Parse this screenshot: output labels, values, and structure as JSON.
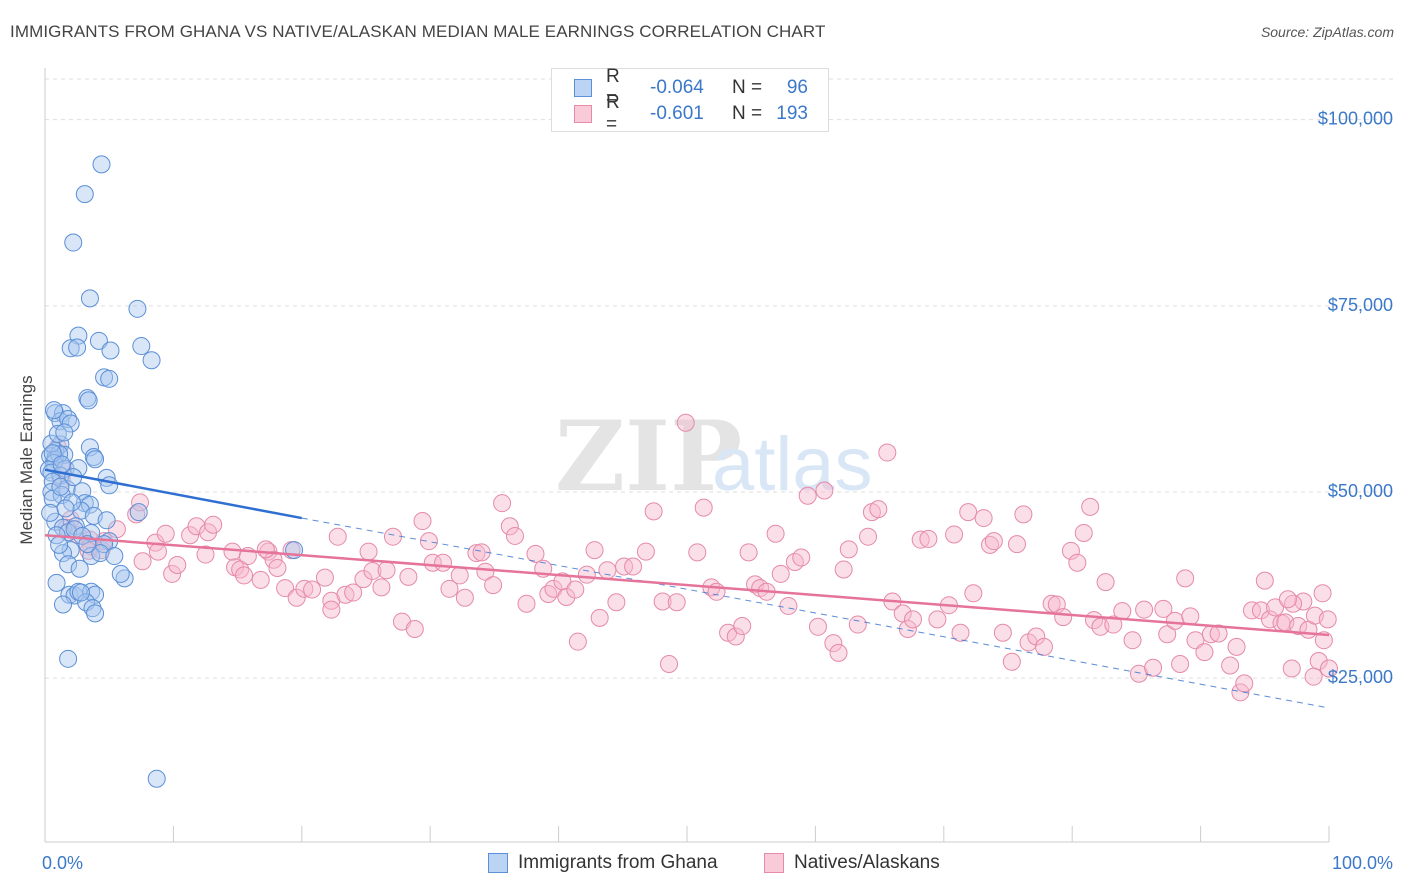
{
  "header": {
    "title": "IMMIGRANTS FROM GHANA VS NATIVE/ALASKAN MEDIAN MALE EARNINGS CORRELATION CHART",
    "source": "Source: ZipAtlas.com"
  },
  "legend": {
    "rows": [
      {
        "r_label": "R =",
        "r_value": "-0.064",
        "n_label": "N =",
        "n_value": "96"
      },
      {
        "r_label": "R =",
        "r_value": "-0.601",
        "n_label": "N =",
        "n_value": "193"
      }
    ]
  },
  "bottom_legend": {
    "series1": "Immigrants from Ghana",
    "series2": "Natives/Alaskans"
  },
  "colors": {
    "blue_fill": "#a9c8f0",
    "blue_stroke": "#5b8fd6",
    "blue_line": "#2f6fd1",
    "pink_fill": "#f6b9cc",
    "pink_stroke": "#e58aa8",
    "pink_line": "#e5739a",
    "accent_text": "#3b78c9"
  },
  "chart_data": {
    "type": "scatter",
    "title": "IMMIGRANTS FROM GHANA VS NATIVE/ALASKAN MEDIAN MALE EARNINGS CORRELATION CHART",
    "xlabel": "",
    "ylabel": "Median Male Earnings",
    "xlim": [
      0,
      100
    ],
    "ylim": [
      3000,
      106000
    ],
    "x_tick_labels": [
      "0.0%",
      "100.0%"
    ],
    "y_ticks": [
      25000,
      50000,
      75000,
      100000
    ],
    "y_tick_labels": [
      "$25,000",
      "$50,000",
      "$75,000",
      "$100,000"
    ],
    "grid": true,
    "legend_position": "top-center",
    "watermark": "ZIPatlas",
    "series": [
      {
        "name": "Immigrants from Ghana",
        "color": "#a9c8f0",
        "points": [
          [
            4.4,
            94
          ],
          [
            3.1,
            90
          ],
          [
            2.2,
            83.5
          ],
          [
            3.5,
            76
          ],
          [
            7.2,
            74.6
          ],
          [
            2.6,
            71
          ],
          [
            4.2,
            70.3
          ],
          [
            2.0,
            69.3
          ],
          [
            2.5,
            69.4
          ],
          [
            5.1,
            69.0
          ],
          [
            7.5,
            69.6
          ],
          [
            8.3,
            67.7
          ],
          [
            4.6,
            65.4
          ],
          [
            5.0,
            65.2
          ],
          [
            3.3,
            62.6
          ],
          [
            3.4,
            62.3
          ],
          [
            0.8,
            60.6
          ],
          [
            1.4,
            60.6
          ],
          [
            1.2,
            59.5
          ],
          [
            1.8,
            59.8
          ],
          [
            2.0,
            59.2
          ],
          [
            1.2,
            56.4
          ],
          [
            3.5,
            56.0
          ],
          [
            0.8,
            55.5
          ],
          [
            1.5,
            55.0
          ],
          [
            0.4,
            54.8
          ],
          [
            0.8,
            54.4
          ],
          [
            1.1,
            55.1
          ],
          [
            3.8,
            54.7
          ],
          [
            3.9,
            54.4
          ],
          [
            0.7,
            53.9
          ],
          [
            0.3,
            53.0
          ],
          [
            0.5,
            52.6
          ],
          [
            1.6,
            53.1
          ],
          [
            2.6,
            53.2
          ],
          [
            1.2,
            52.2
          ],
          [
            0.6,
            51.4
          ],
          [
            4.8,
            51.9
          ],
          [
            5.0,
            50.9
          ],
          [
            1.7,
            50.4
          ],
          [
            0.5,
            50.0
          ],
          [
            1.3,
            49.6
          ],
          [
            2.9,
            50.1
          ],
          [
            0.6,
            49.1
          ],
          [
            3.1,
            48.5
          ],
          [
            3.5,
            48.3
          ],
          [
            2.8,
            47.5
          ],
          [
            7.3,
            47.3
          ],
          [
            3.8,
            46.8
          ],
          [
            0.8,
            46.0
          ],
          [
            1.4,
            45.2
          ],
          [
            2.4,
            45.4
          ],
          [
            1.8,
            44.6
          ],
          [
            3.6,
            44.5
          ],
          [
            0.9,
            44.2
          ],
          [
            5.0,
            43.4
          ],
          [
            4.6,
            43.0
          ],
          [
            2.0,
            42.2
          ],
          [
            1.4,
            41.8
          ],
          [
            3.6,
            41.4
          ],
          [
            4.3,
            41.8
          ],
          [
            5.4,
            41.4
          ],
          [
            1.8,
            40.3
          ],
          [
            2.7,
            39.7
          ],
          [
            1.9,
            36.2
          ],
          [
            2.3,
            36.1
          ],
          [
            2.6,
            36.6
          ],
          [
            3.6,
            36.6
          ],
          [
            3.9,
            36.2
          ],
          [
            3.2,
            35.2
          ],
          [
            1.4,
            34.9
          ],
          [
            3.7,
            34.4
          ],
          [
            3.9,
            33.7
          ],
          [
            6.2,
            38.4
          ],
          [
            19.4,
            42.2
          ],
          [
            1.8,
            27.6
          ],
          [
            8.7,
            11.5
          ],
          [
            0.5,
            56.5
          ],
          [
            1.0,
            57.8
          ],
          [
            0.6,
            55.2
          ],
          [
            1.2,
            50.7
          ],
          [
            2.1,
            48.6
          ],
          [
            2.3,
            45.0
          ],
          [
            0.4,
            47.2
          ],
          [
            1.6,
            47.8
          ],
          [
            2.9,
            44.1
          ],
          [
            3.3,
            43.0
          ],
          [
            4.8,
            46.2
          ],
          [
            1.1,
            42.9
          ],
          [
            0.9,
            37.8
          ],
          [
            2.8,
            36.5
          ],
          [
            5.9,
            39.0
          ],
          [
            0.7,
            61.0
          ],
          [
            1.5,
            58.0
          ],
          [
            2.2,
            52.0
          ],
          [
            1.3,
            53.7
          ]
        ]
      },
      {
        "name": "Natives/Alaskans",
        "color": "#f6b9cc",
        "points": [
          [
            1.0,
            56
          ],
          [
            1.4,
            53.0
          ],
          [
            1.3,
            51.6
          ],
          [
            2.0,
            46.3
          ],
          [
            1.7,
            45.2
          ],
          [
            2.6,
            44.2
          ],
          [
            3.5,
            43.6
          ],
          [
            4.6,
            43.4
          ],
          [
            3.6,
            42.7
          ],
          [
            3.4,
            42.1
          ],
          [
            4.4,
            42.2
          ],
          [
            5.6,
            45.0
          ],
          [
            7.1,
            47.0
          ],
          [
            7.4,
            48.6
          ],
          [
            8.6,
            43.2
          ],
          [
            8.8,
            42.0
          ],
          [
            7.6,
            40.7
          ],
          [
            9.4,
            44.4
          ],
          [
            9.9,
            39.0
          ],
          [
            10.3,
            40.2
          ],
          [
            11.3,
            44.2
          ],
          [
            11.8,
            45.4
          ],
          [
            12.7,
            44.6
          ],
          [
            13.1,
            45.6
          ],
          [
            12.5,
            41.6
          ],
          [
            14.8,
            39.9
          ],
          [
            14.6,
            42.0
          ],
          [
            15.2,
            39.6
          ],
          [
            15.8,
            41.4
          ],
          [
            15.5,
            38.8
          ],
          [
            16.8,
            38.2
          ],
          [
            17.4,
            42.0
          ],
          [
            17.8,
            40.9
          ],
          [
            17.2,
            42.3
          ],
          [
            18.1,
            39.8
          ],
          [
            19.2,
            42.2
          ],
          [
            18.7,
            37.1
          ],
          [
            19.6,
            35.8
          ],
          [
            20.2,
            37.0
          ],
          [
            20.8,
            36.9
          ],
          [
            21.8,
            38.5
          ],
          [
            22.3,
            35.4
          ],
          [
            22.3,
            34.2
          ],
          [
            22.8,
            44.0
          ],
          [
            23.4,
            36.2
          ],
          [
            24.0,
            36.5
          ],
          [
            24.8,
            38.3
          ],
          [
            25.2,
            42.0
          ],
          [
            25.5,
            39.4
          ],
          [
            26.2,
            37.2
          ],
          [
            26.6,
            39.5
          ],
          [
            27.1,
            44.0
          ],
          [
            27.8,
            32.6
          ],
          [
            28.3,
            38.6
          ],
          [
            28.8,
            31.6
          ],
          [
            29.4,
            46.1
          ],
          [
            29.9,
            43.4
          ],
          [
            30.2,
            40.5
          ],
          [
            31.0,
            40.5
          ],
          [
            31.5,
            37.0
          ],
          [
            32.3,
            38.8
          ],
          [
            32.7,
            35.8
          ],
          [
            33.6,
            41.8
          ],
          [
            34.0,
            41.9
          ],
          [
            34.3,
            39.3
          ],
          [
            34.9,
            37.5
          ],
          [
            35.6,
            48.5
          ],
          [
            36.2,
            45.4
          ],
          [
            36.6,
            44.1
          ],
          [
            37.5,
            35.0
          ],
          [
            38.2,
            41.7
          ],
          [
            38.8,
            39.7
          ],
          [
            39.2,
            36.3
          ],
          [
            39.6,
            37.0
          ],
          [
            40.3,
            38.0
          ],
          [
            40.6,
            35.9
          ],
          [
            41.3,
            36.9
          ],
          [
            41.5,
            29.9
          ],
          [
            42.2,
            38.9
          ],
          [
            42.8,
            42.2
          ],
          [
            43.2,
            33.1
          ],
          [
            43.8,
            39.5
          ],
          [
            44.5,
            35.2
          ],
          [
            45.1,
            40.0
          ],
          [
            45.8,
            40.0
          ],
          [
            46.8,
            42.0
          ],
          [
            47.4,
            47.4
          ],
          [
            48.1,
            35.3
          ],
          [
            48.6,
            26.9
          ],
          [
            49.2,
            35.2
          ],
          [
            49.9,
            59.3
          ],
          [
            50.8,
            41.9
          ],
          [
            51.3,
            47.9
          ],
          [
            51.9,
            37.2
          ],
          [
            52.3,
            36.6
          ],
          [
            53.2,
            31.1
          ],
          [
            53.8,
            30.6
          ],
          [
            54.3,
            32.0
          ],
          [
            54.8,
            41.9
          ],
          [
            55.3,
            37.6
          ],
          [
            55.7,
            37.1
          ],
          [
            56.2,
            36.6
          ],
          [
            56.9,
            44.4
          ],
          [
            57.3,
            39.0
          ],
          [
            57.9,
            34.7
          ],
          [
            58.4,
            40.6
          ],
          [
            58.9,
            41.2
          ],
          [
            59.4,
            49.5
          ],
          [
            60.2,
            31.9
          ],
          [
            60.7,
            50.2
          ],
          [
            61.4,
            29.7
          ],
          [
            61.8,
            28.4
          ],
          [
            62.2,
            39.6
          ],
          [
            62.6,
            42.3
          ],
          [
            63.3,
            32.2
          ],
          [
            64.1,
            44.0
          ],
          [
            64.4,
            47.3
          ],
          [
            64.9,
            47.7
          ],
          [
            65.6,
            55.3
          ],
          [
            66.0,
            35.3
          ],
          [
            66.8,
            33.7
          ],
          [
            67.2,
            31.6
          ],
          [
            67.6,
            32.9
          ],
          [
            68.2,
            43.6
          ],
          [
            68.8,
            43.7
          ],
          [
            69.5,
            32.9
          ],
          [
            70.4,
            34.8
          ],
          [
            70.8,
            44.3
          ],
          [
            71.3,
            31.1
          ],
          [
            71.9,
            47.3
          ],
          [
            72.3,
            36.4
          ],
          [
            73.1,
            46.5
          ],
          [
            73.6,
            42.9
          ],
          [
            73.9,
            43.4
          ],
          [
            74.6,
            31.1
          ],
          [
            75.3,
            27.2
          ],
          [
            75.7,
            43.0
          ],
          [
            76.2,
            47.0
          ],
          [
            76.6,
            29.8
          ],
          [
            77.2,
            30.6
          ],
          [
            77.8,
            29.2
          ],
          [
            78.4,
            35.0
          ],
          [
            78.8,
            34.9
          ],
          [
            79.3,
            33.2
          ],
          [
            79.9,
            42.1
          ],
          [
            80.4,
            40.5
          ],
          [
            80.9,
            44.5
          ],
          [
            81.4,
            48.0
          ],
          [
            81.7,
            32.8
          ],
          [
            82.2,
            31.9
          ],
          [
            82.6,
            37.9
          ],
          [
            83.2,
            32.2
          ],
          [
            83.9,
            34.0
          ],
          [
            84.7,
            30.1
          ],
          [
            85.2,
            25.6
          ],
          [
            85.6,
            34.2
          ],
          [
            86.3,
            26.4
          ],
          [
            87.1,
            34.3
          ],
          [
            87.4,
            30.9
          ],
          [
            88.0,
            32.7
          ],
          [
            88.4,
            26.9
          ],
          [
            88.8,
            38.4
          ],
          [
            89.2,
            33.3
          ],
          [
            89.6,
            30.1
          ],
          [
            90.3,
            28.5
          ],
          [
            90.8,
            30.9
          ],
          [
            91.4,
            31.0
          ],
          [
            92.3,
            26.7
          ],
          [
            92.8,
            29.2
          ],
          [
            93.1,
            23.1
          ],
          [
            93.4,
            24.3
          ],
          [
            94.0,
            34.1
          ],
          [
            94.7,
            34.1
          ],
          [
            95.0,
            38.1
          ],
          [
            95.4,
            32.9
          ],
          [
            95.8,
            34.5
          ],
          [
            96.3,
            32.4
          ],
          [
            96.6,
            32.5
          ],
          [
            97.1,
            26.3
          ],
          [
            97.6,
            32.0
          ],
          [
            98.0,
            35.3
          ],
          [
            98.4,
            31.5
          ],
          [
            98.9,
            33.4
          ],
          [
            99.2,
            27.3
          ],
          [
            99.6,
            30.1
          ],
          [
            99.9,
            32.9
          ],
          [
            100.0,
            26.3
          ],
          [
            97.2,
            35.0
          ],
          [
            98.8,
            25.2
          ],
          [
            99.5,
            36.4
          ],
          [
            96.8,
            35.6
          ]
        ]
      }
    ],
    "trend_lines": [
      {
        "name": "Immigrants from Ghana",
        "solid": [
          [
            0,
            53
          ],
          [
            20,
            46.5
          ]
        ],
        "dashed": [
          [
            20,
            46.5
          ],
          [
            100,
            21
          ]
        ],
        "color": "#2f6fd1"
      },
      {
        "name": "Natives/Alaskans",
        "solid": [
          [
            0,
            44.2
          ],
          [
            100,
            30.8
          ]
        ],
        "color": "#e5739a"
      }
    ]
  }
}
